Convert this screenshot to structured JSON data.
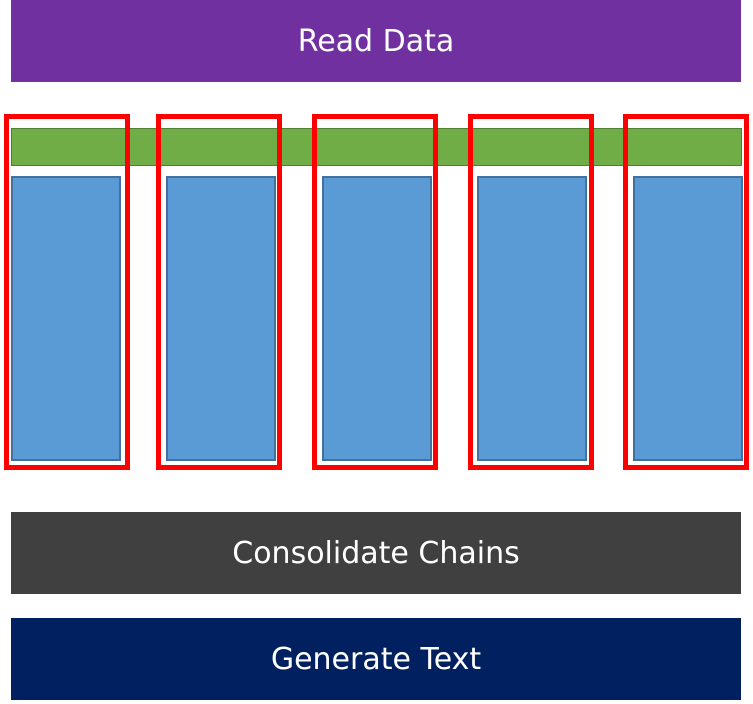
{
  "stages": {
    "read_data": {
      "label": "Read Data",
      "color": "#7030a0"
    },
    "consolidate": {
      "label": "Consolidate Chains",
      "color": "#404040"
    },
    "generate": {
      "label": "Generate Text",
      "color": "#002060"
    }
  },
  "parallel_section": {
    "shared_bar_color": "#70ad47",
    "chain_color": "#5b9bd5",
    "worker_outline_color": "#ff0000",
    "worker_count": 5
  }
}
